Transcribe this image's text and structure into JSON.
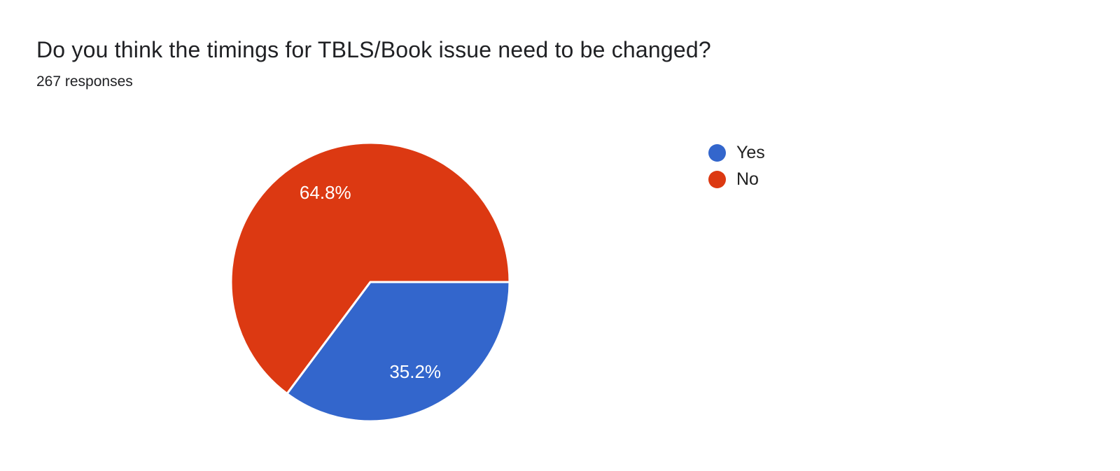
{
  "header": {
    "title": "Do you think the timings for TBLS/Book issue need to be changed?",
    "subtitle": "267 responses"
  },
  "chart_data": {
    "type": "pie",
    "title": "Do you think the timings for TBLS/Book issue need to be changed?",
    "responses_label": "267 responses",
    "responses_count": 267,
    "start_angle_deg": 0,
    "direction": "clockwise",
    "legend_position": "right",
    "grid": false,
    "slice_border_color": "#ffffff",
    "slice_label_color": "#ffffff",
    "label_radius_ratio": 0.72,
    "slices": [
      {
        "label": "Yes",
        "percent": 35.2,
        "display": "35.2%",
        "color": "#3366cc"
      },
      {
        "label": "No",
        "percent": 64.8,
        "display": "64.8%",
        "color": "#dc3912"
      }
    ]
  },
  "colors": {
    "background": "#ffffff",
    "title_text": "#202124",
    "subtitle_text": "#202124",
    "legend_text": "#212121"
  }
}
